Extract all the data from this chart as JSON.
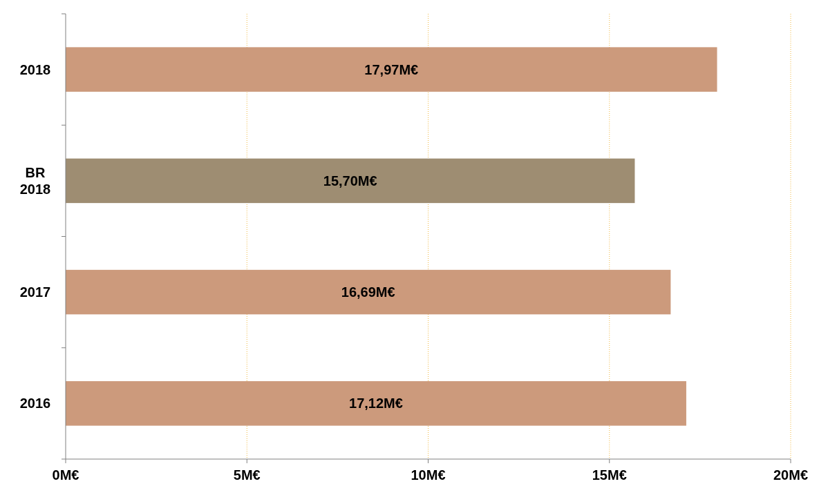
{
  "chart_data": {
    "type": "bar",
    "orientation": "horizontal",
    "categories": [
      "2018",
      "BR 2018",
      "2017",
      "2016"
    ],
    "values": [
      17.97,
      15.7,
      16.69,
      17.12
    ],
    "colors": [
      "#cc9a7c",
      "#9e8d72",
      "#cc9a7c",
      "#cc9a7c"
    ],
    "value_labels": [
      "17,97M€",
      "15,70M€",
      "16,69M€",
      "17,12M€"
    ],
    "xlim": [
      0,
      20
    ],
    "xticks": [
      {
        "value": 0,
        "label": "0M€"
      },
      {
        "value": 5,
        "label": "5M€"
      },
      {
        "value": 10,
        "label": "10M€"
      },
      {
        "value": 15,
        "label": "15M€"
      },
      {
        "value": 20,
        "label": "20M€"
      }
    ],
    "grid": "x"
  }
}
